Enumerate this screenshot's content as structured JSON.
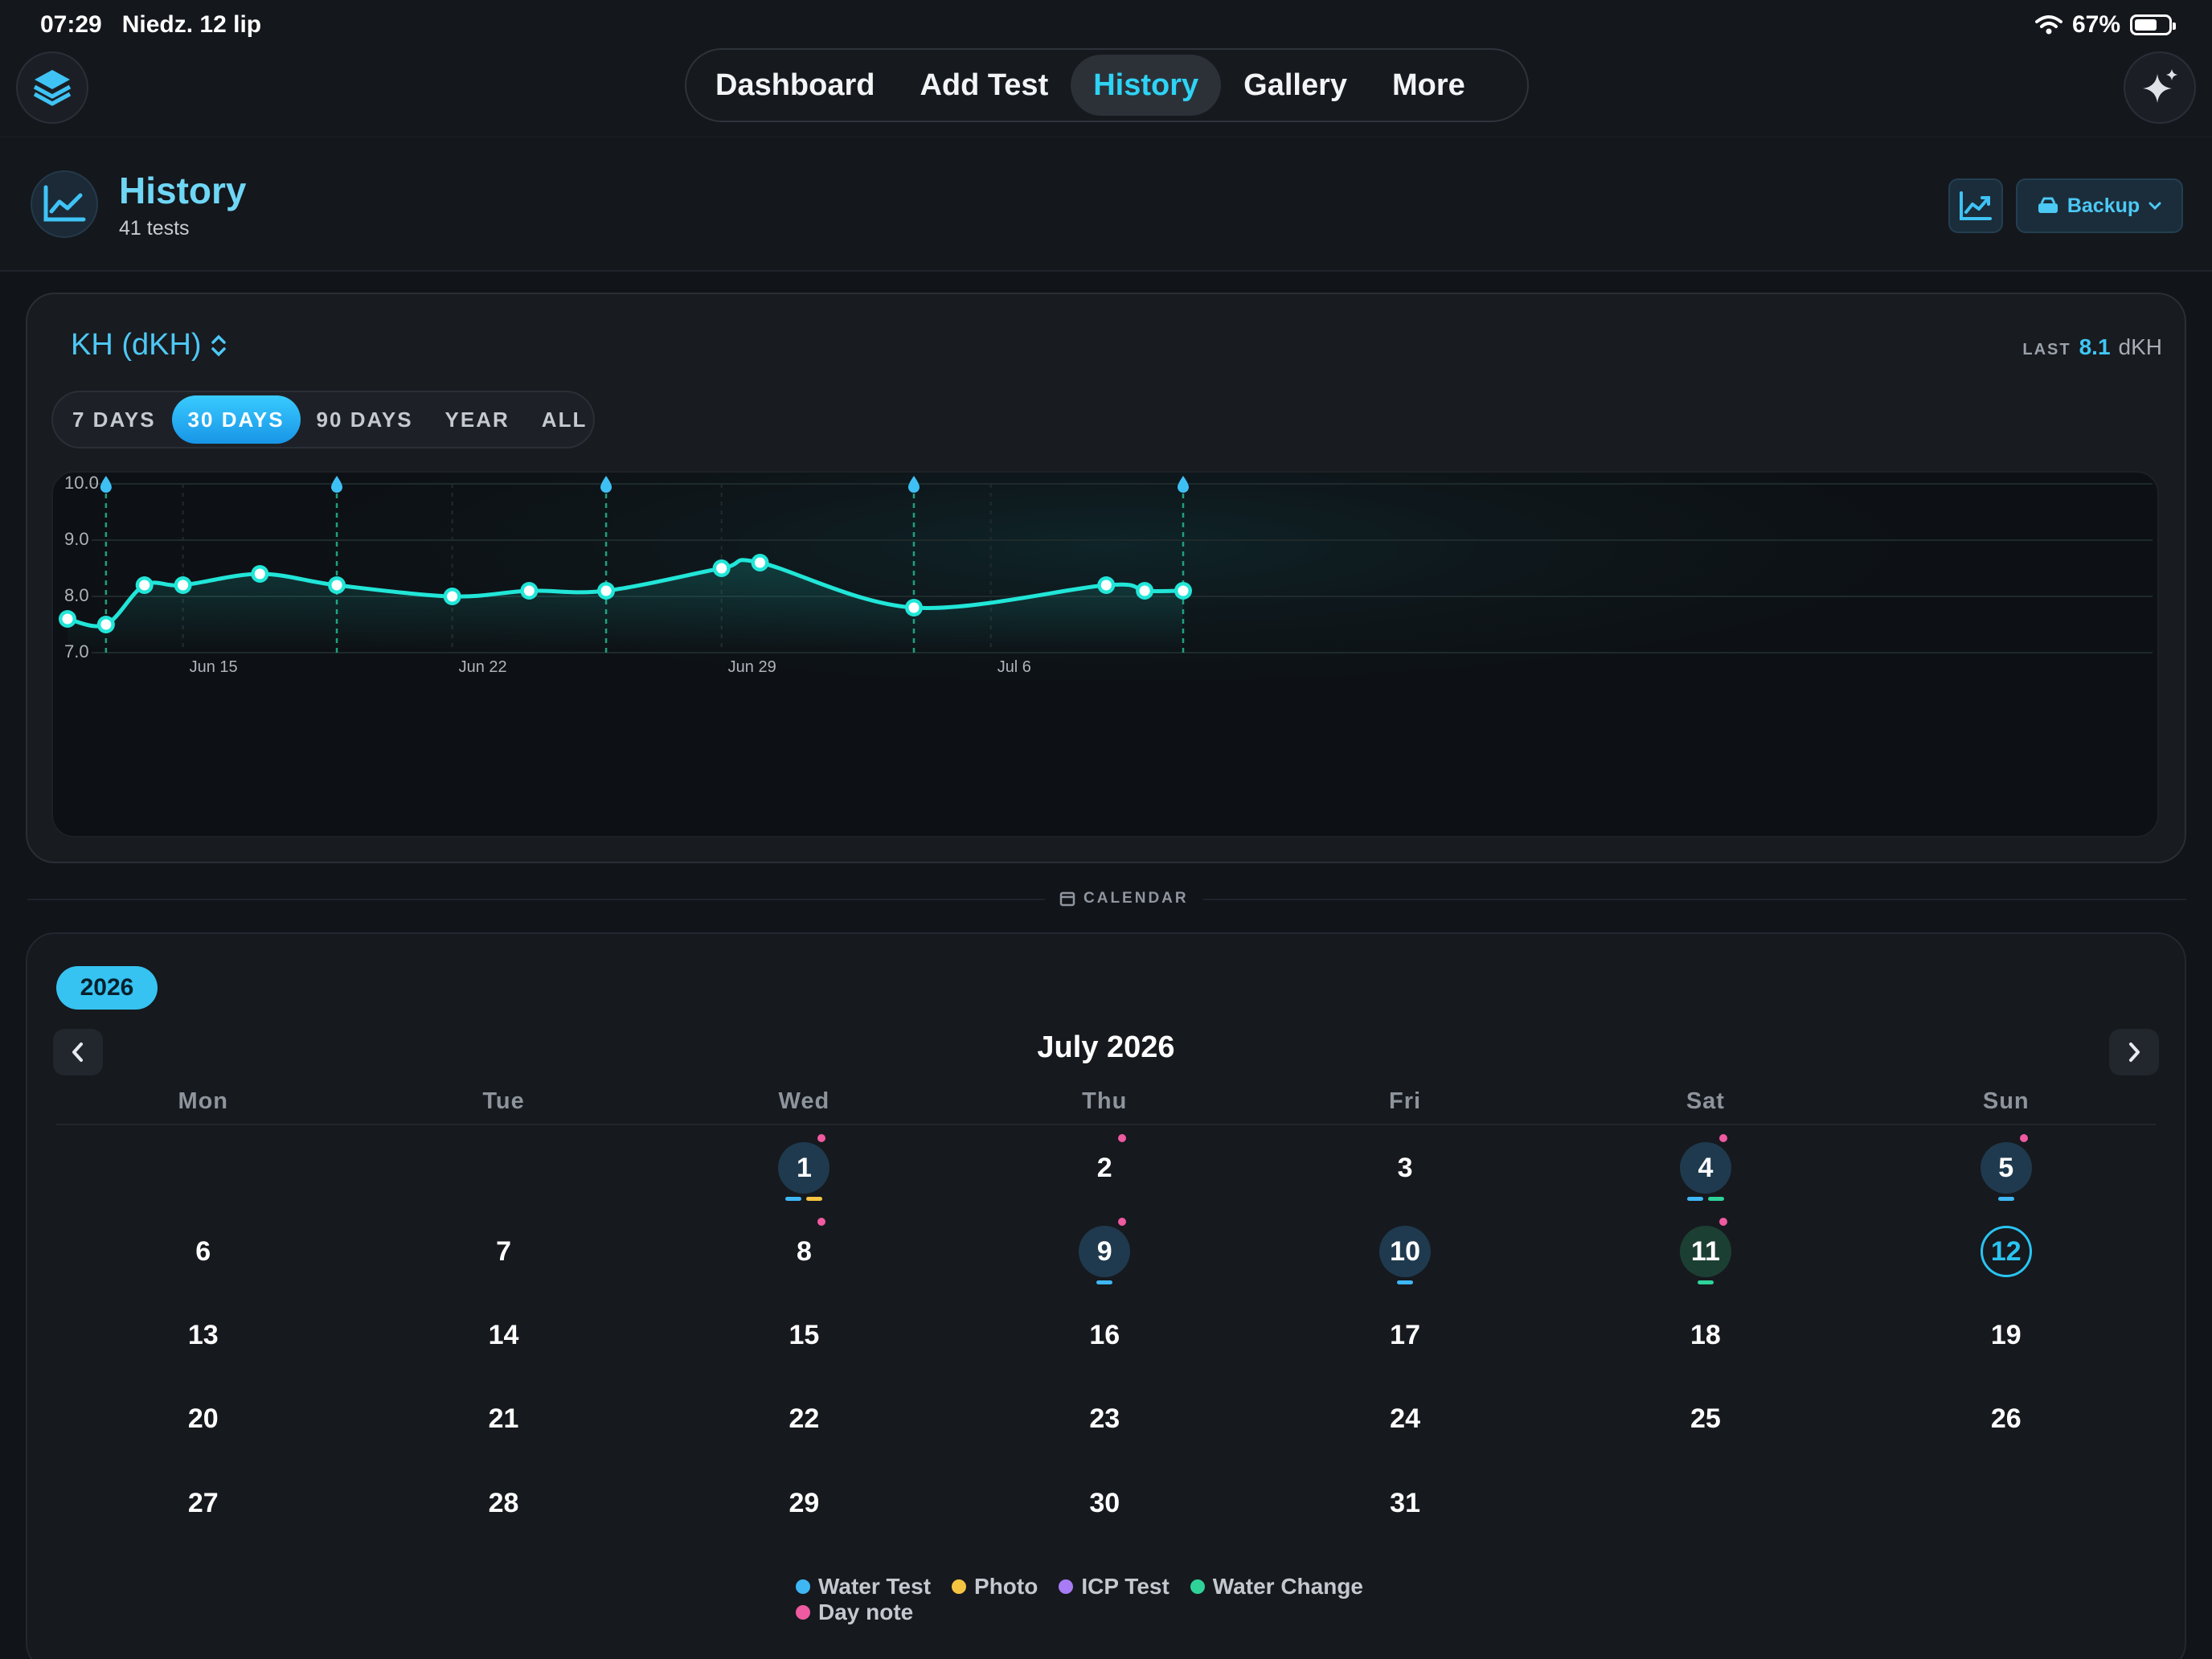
{
  "status": {
    "time": "07:29",
    "date": "Niedz. 12 lip",
    "battery": "67%",
    "battery_level": 0.67
  },
  "nav": {
    "tabs": [
      {
        "label": "Dashboard"
      },
      {
        "label": "Add Test"
      },
      {
        "label": "History",
        "active": true
      },
      {
        "label": "Gallery"
      },
      {
        "label": "More"
      }
    ],
    "logo_icon": "stack-layers-icon",
    "sparkle_icon": "sparkles-icon"
  },
  "header": {
    "title": "History",
    "subtitle": "41 tests",
    "chart_icon": "trend-chart-icon",
    "backup_label": "Backup"
  },
  "chart_section": {
    "parameter": "KH (dKH)",
    "last_label": "LAST",
    "last_value": "8.1",
    "last_unit": "dKH",
    "ranges": [
      {
        "label": "7 DAYS"
      },
      {
        "label": "30 DAYS",
        "active": true
      },
      {
        "label": "90 DAYS"
      },
      {
        "label": "YEAR"
      },
      {
        "label": "ALL"
      }
    ]
  },
  "chart_data": {
    "type": "line",
    "ylim": [
      7.0,
      10.0
    ],
    "y_ticks": [
      "10.0",
      "9.0",
      "8.0",
      "7.0"
    ],
    "x_ticks": [
      {
        "date": "2026-06-15",
        "label": "Jun 15"
      },
      {
        "date": "2026-06-22",
        "label": "Jun 22"
      },
      {
        "date": "2026-06-29",
        "label": "Jun 29"
      },
      {
        "date": "2026-07-06",
        "label": "Jul 6"
      }
    ],
    "xlim": [
      "2026-06-12",
      "2026-07-12"
    ],
    "series": [
      {
        "points": [
          {
            "x": "2026-06-12",
            "y": 7.6
          },
          {
            "x": "2026-06-13",
            "y": 7.5
          },
          {
            "x": "2026-06-14",
            "y": 8.2
          },
          {
            "x": "2026-06-15",
            "y": 8.2
          },
          {
            "x": "2026-06-17",
            "y": 8.4
          },
          {
            "x": "2026-06-19",
            "y": 8.2
          },
          {
            "x": "2026-06-22",
            "y": 8.0
          },
          {
            "x": "2026-06-24",
            "y": 8.1
          },
          {
            "x": "2026-06-26",
            "y": 8.1
          },
          {
            "x": "2026-06-29",
            "y": 8.5
          },
          {
            "x": "2026-06-30",
            "y": 8.6
          },
          {
            "x": "2026-07-04",
            "y": 7.8
          },
          {
            "x": "2026-07-09",
            "y": 8.2
          },
          {
            "x": "2026-07-10",
            "y": 8.1
          },
          {
            "x": "2026-07-11",
            "y": 8.1
          }
        ]
      }
    ],
    "water_change_markers": [
      "2026-06-13",
      "2026-06-19",
      "2026-06-26",
      "2026-07-04",
      "2026-07-11"
    ],
    "colors": {
      "line": "#21e6d8",
      "marker": "#3fc0f5",
      "grid": "#1e2a2c"
    }
  },
  "calendar": {
    "section_label": "CALENDAR",
    "year": "2026",
    "month_title": "July 2026",
    "weekdays": [
      "Mon",
      "Tue",
      "Wed",
      "Thu",
      "Fri",
      "Sat",
      "Sun"
    ],
    "days": [
      {
        "n": "1",
        "w": 2,
        "r": 0,
        "tested": true,
        "note": true,
        "marks": [
          "#3fb7f5",
          "#f5c542"
        ]
      },
      {
        "n": "2",
        "w": 3,
        "r": 0,
        "note": true
      },
      {
        "n": "3",
        "w": 4,
        "r": 0
      },
      {
        "n": "4",
        "w": 5,
        "r": 0,
        "tested": true,
        "note": true,
        "marks": [
          "#3fb7f5",
          "#2fd39a"
        ]
      },
      {
        "n": "5",
        "w": 6,
        "r": 0,
        "tested": true,
        "note": true,
        "marks": [
          "#3fb7f5"
        ]
      },
      {
        "n": "6",
        "w": 0,
        "r": 1
      },
      {
        "n": "7",
        "w": 1,
        "r": 1
      },
      {
        "n": "8",
        "w": 2,
        "r": 1,
        "note": true
      },
      {
        "n": "9",
        "w": 3,
        "r": 1,
        "tested": true,
        "note": true,
        "marks": [
          "#3fb7f5"
        ]
      },
      {
        "n": "10",
        "w": 4,
        "r": 1,
        "tested": true,
        "marks": [
          "#3fb7f5"
        ]
      },
      {
        "n": "11",
        "w": 5,
        "r": 1,
        "change": true,
        "note": true,
        "marks": [
          "#2fd39a"
        ]
      },
      {
        "n": "12",
        "w": 6,
        "r": 1,
        "today": true
      },
      {
        "n": "13",
        "w": 0,
        "r": 2
      },
      {
        "n": "14",
        "w": 1,
        "r": 2
      },
      {
        "n": "15",
        "w": 2,
        "r": 2
      },
      {
        "n": "16",
        "w": 3,
        "r": 2
      },
      {
        "n": "17",
        "w": 4,
        "r": 2
      },
      {
        "n": "18",
        "w": 5,
        "r": 2
      },
      {
        "n": "19",
        "w": 6,
        "r": 2
      },
      {
        "n": "20",
        "w": 0,
        "r": 3
      },
      {
        "n": "21",
        "w": 1,
        "r": 3
      },
      {
        "n": "22",
        "w": 2,
        "r": 3
      },
      {
        "n": "23",
        "w": 3,
        "r": 3
      },
      {
        "n": "24",
        "w": 4,
        "r": 3
      },
      {
        "n": "25",
        "w": 5,
        "r": 3
      },
      {
        "n": "26",
        "w": 6,
        "r": 3
      },
      {
        "n": "27",
        "w": 0,
        "r": 4
      },
      {
        "n": "28",
        "w": 1,
        "r": 4
      },
      {
        "n": "29",
        "w": 2,
        "r": 4
      },
      {
        "n": "30",
        "w": 3,
        "r": 4
      },
      {
        "n": "31",
        "w": 4,
        "r": 4
      }
    ],
    "legend": [
      {
        "label": "Water Test",
        "color": "#3fb7f5"
      },
      {
        "label": "Photo",
        "color": "#f5c542"
      },
      {
        "label": "ICP Test",
        "color": "#a77cf5"
      },
      {
        "label": "Water Change",
        "color": "#2fd39a"
      },
      {
        "label": "Day note",
        "color": "#ef5aa0"
      }
    ]
  }
}
